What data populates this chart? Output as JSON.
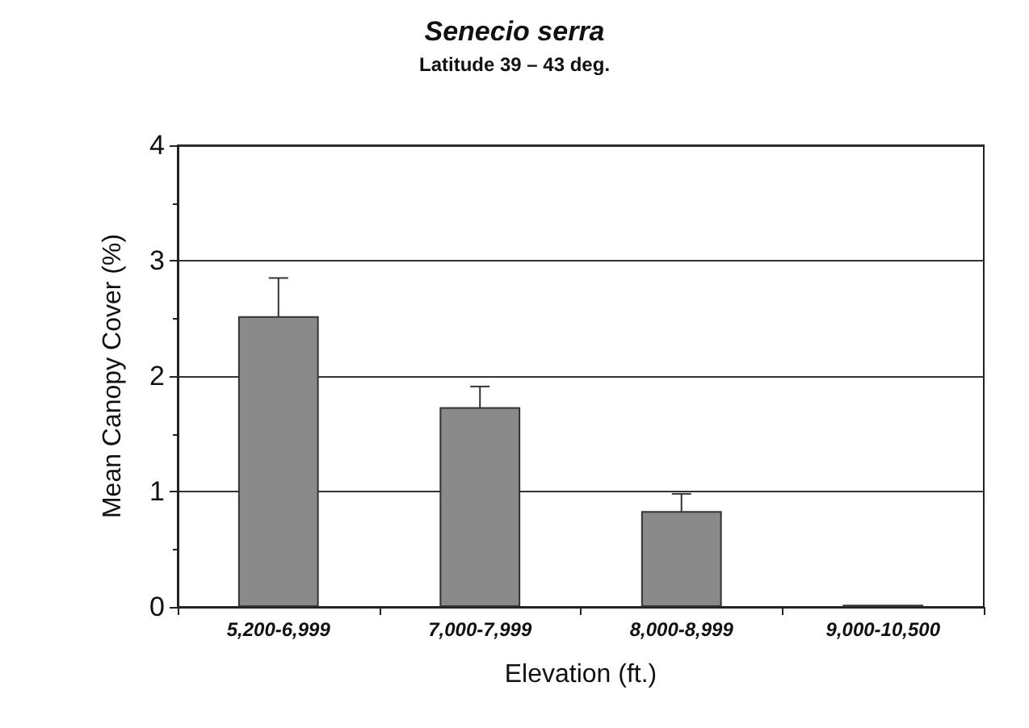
{
  "chart_data": {
    "type": "bar",
    "title": "Senecio serra",
    "subtitle": "Latitude 39 – 43 deg.",
    "xlabel": "Elevation (ft.)",
    "ylabel": "Mean Canopy Cover (%)",
    "categories": [
      "5,200-6,999",
      "7,000-7,999",
      "8,000-8,999",
      "9,000-10,500"
    ],
    "values": [
      2.52,
      1.73,
      0.83,
      0.02
    ],
    "color": "#8a8a8a",
    "errors": [
      0.33,
      0.18,
      0.15,
      null
    ],
    "ylim": [
      0,
      4
    ],
    "yticks": [
      0,
      1,
      2,
      3,
      4
    ],
    "grid": "y"
  }
}
